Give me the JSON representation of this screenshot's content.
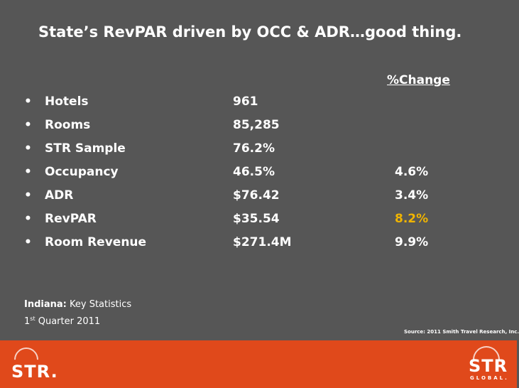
{
  "title": "State’s RevPAR driven by OCC & ADR…good thing.",
  "change_header": "%Change",
  "rows": [
    {
      "label": "Hotels",
      "value": "961",
      "change": ""
    },
    {
      "label": "Rooms",
      "value": "85,285",
      "change": ""
    },
    {
      "label": "STR Sample",
      "value": "76.2%",
      "change": ""
    },
    {
      "label": "Occupancy",
      "value": "46.5%",
      "change": "4.6%"
    },
    {
      "label": "ADR",
      "value": "$76.42",
      "change": "3.4%"
    },
    {
      "label": "RevPAR",
      "value": "$35.54",
      "change": "8.2%"
    },
    {
      "label": "Room Revenue",
      "value": "$271.4M",
      "change": "9.9%"
    }
  ],
  "bullet": "•",
  "highlight_color": "#f0b400",
  "caption": {
    "state": "Indiana:",
    "subtitle": " Key Statistics",
    "quarter_num": "1",
    "quarter_sup": "st",
    "quarter_rest": " Quarter 2011"
  },
  "source": "Source: 2011 Smith Travel Research, Inc.",
  "footer": {
    "logo_left": "STR.",
    "logo_right": "STR",
    "logo_right_sub": "GLOBAL."
  }
}
